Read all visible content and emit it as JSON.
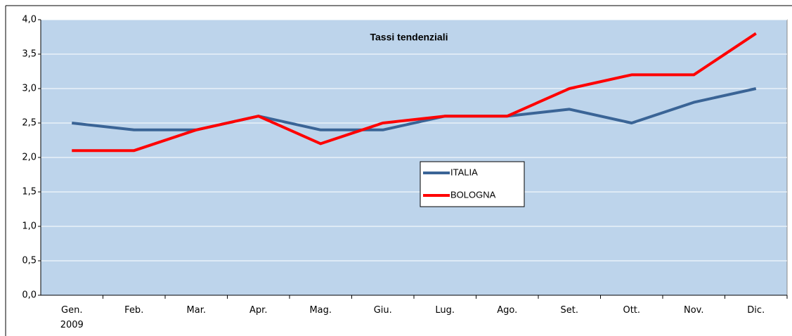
{
  "chart_data": {
    "type": "line",
    "title": "Tassi tendenziali",
    "categories": [
      "Gen. 2009",
      "Feb.",
      "Mar.",
      "Apr.",
      "Mag.",
      "Giu.",
      "Lug.",
      "Ago.",
      "Set.",
      "Ott.",
      "Nov.",
      "Dic."
    ],
    "series": [
      {
        "name": "ITALIA",
        "color": "#3a6496",
        "values": [
          2.5,
          2.4,
          2.4,
          2.6,
          2.4,
          2.4,
          2.6,
          2.6,
          2.7,
          2.5,
          2.8,
          3.0
        ]
      },
      {
        "name": "BOLOGNA",
        "color": "#ff0000",
        "values": [
          2.1,
          2.1,
          2.4,
          2.6,
          2.2,
          2.5,
          2.6,
          2.6,
          3.0,
          3.2,
          3.2,
          3.8
        ]
      }
    ],
    "ylim": [
      0,
      4
    ],
    "yticks": [
      {
        "value": 0,
        "label": "0,0"
      },
      {
        "value": 0.5,
        "label": "0,5"
      },
      {
        "value": 1,
        "label": "1,0"
      },
      {
        "value": 1.5,
        "label": "1,5"
      },
      {
        "value": 2,
        "label": "2,0"
      },
      {
        "value": 2.5,
        "label": "2,5"
      },
      {
        "value": 3,
        "label": "3,0"
      },
      {
        "value": 3.5,
        "label": "3,5"
      },
      {
        "value": 4,
        "label": "4,0"
      }
    ],
    "grid": true
  }
}
